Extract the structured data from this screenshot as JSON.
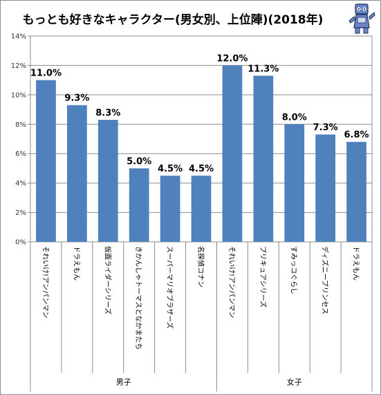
{
  "title": "もっとも好きなキャラクター(男女別、上位陣)(2018年)",
  "chart_data": {
    "type": "bar",
    "title": "もっとも好きなキャラクター(男女別、上位陣)(2018年)",
    "ylim": [
      0,
      14
    ],
    "y_ticks": [
      "0%",
      "2%",
      "4%",
      "6%",
      "8%",
      "10%",
      "12%",
      "14%"
    ],
    "grid": true,
    "bar_color": "#4f81bd",
    "groups": [
      {
        "name": "男子",
        "categories": [
          "それいけ!アンパンマン",
          "ドラえもん",
          "仮面ライダーシリーズ",
          "きかんしゃトーマスとなかまたち",
          "スーパーマリオブラザーズ",
          "名探偵コナン"
        ],
        "values": [
          11.0,
          9.3,
          8.3,
          5.0,
          4.5,
          4.5
        ],
        "labels": [
          "11.0%",
          "9.3%",
          "8.3%",
          "5.0%",
          "4.5%",
          "4.5%"
        ]
      },
      {
        "name": "女子",
        "categories": [
          "それいけ!アンパンマン",
          "プリキュアシリーズ",
          "すみっコぐらし",
          "ディズニープリンセス",
          "ドラえもん"
        ],
        "values": [
          12.0,
          11.3,
          8.0,
          7.3,
          6.8
        ],
        "labels": [
          "12.0%",
          "11.3%",
          "8.0%",
          "7.3%",
          "6.8%"
        ]
      }
    ]
  },
  "mascot_icon": "robot-mascot-icon"
}
